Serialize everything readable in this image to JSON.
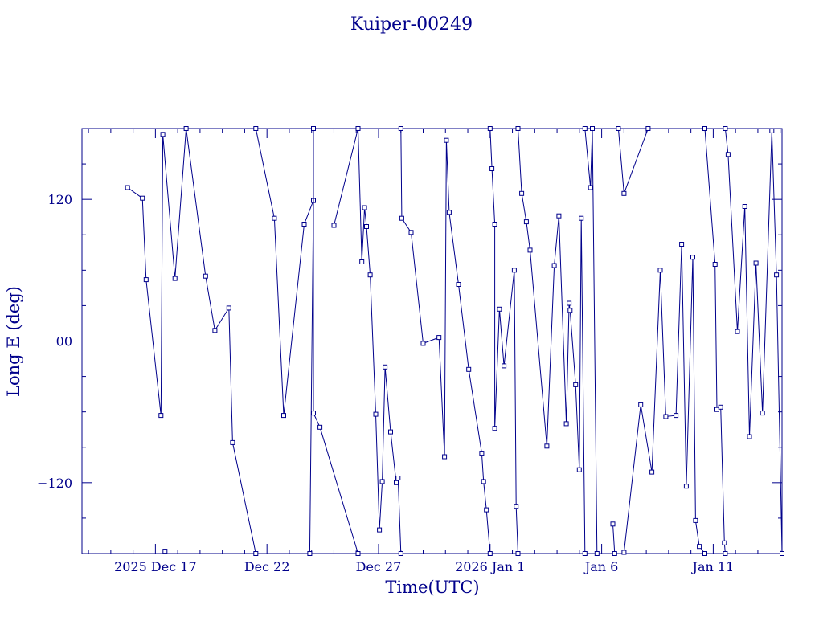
{
  "chart_data": {
    "type": "line",
    "title": "Kuiper-00249",
    "xlabel": "Time(UTC)",
    "ylabel": "Long E (deg)",
    "color": "#00008b",
    "background": "#ffffff",
    "grid": false,
    "legend": "none",
    "x_unit": "date",
    "x_range": [
      "2025-12-13T17:00",
      "2026-01-14T02:00"
    ],
    "y_range": [
      -180,
      180
    ],
    "x_tick_labels": [
      {
        "date": "2025-12-17",
        "label": "2025 Dec 17"
      },
      {
        "date": "2025-12-22",
        "label": "Dec 22"
      },
      {
        "date": "2025-12-27",
        "label": "Dec 27"
      },
      {
        "date": "2026-01-01",
        "label": "2026 Jan  1"
      },
      {
        "date": "2026-01-06",
        "label": "Jan  6"
      },
      {
        "date": "2026-01-11",
        "label": "Jan 11"
      }
    ],
    "y_tick_labels": [
      {
        "value": 120,
        "label": "120"
      },
      {
        "value": 0,
        "label": "00"
      },
      {
        "value": -120,
        "label": "−120"
      }
    ],
    "series": [
      {
        "points": [
          [
            "2025-12-17T10:17",
            -178
          ]
        ]
      },
      {
        "points": [
          [
            "2025-12-15T18:00",
            130
          ],
          [
            "2025-12-16T10:00",
            121
          ],
          [
            "2025-12-16T14:00",
            52
          ],
          [
            "2025-12-17T06:00",
            -63
          ],
          [
            "2025-12-17T08:00",
            175
          ],
          [
            "2025-12-17T21:00",
            53
          ],
          [
            "2025-12-18T09:00",
            180
          ],
          [
            "2025-12-19T06:00",
            55
          ],
          [
            "2025-12-19T16:00",
            9
          ],
          [
            "2025-12-20T07:00",
            28
          ],
          [
            "2025-12-20T11:00",
            -86
          ],
          [
            "2025-12-21T12:00",
            -180
          ]
        ]
      },
      {
        "points": [
          [
            "2025-12-21T12:00",
            180
          ],
          [
            "2025-12-22T08:00",
            104
          ],
          [
            "2025-12-22T18:00",
            -63
          ],
          [
            "2025-12-23T16:00",
            99
          ],
          [
            "2025-12-24T02:00",
            119
          ],
          [
            "2025-12-23T22:00",
            -180
          ]
        ]
      },
      {
        "points": [
          [
            "2025-12-24T02:00",
            180
          ],
          [
            "2025-12-24T02:00",
            -61
          ],
          [
            "2025-12-24T09:00",
            -73
          ],
          [
            "2025-12-26T02:00",
            -180
          ]
        ]
      },
      {
        "points": [
          [
            "2025-12-25T00:00",
            98
          ],
          [
            "2025-12-26T02:00",
            180
          ],
          [
            "2025-12-26T06:00",
            67
          ],
          [
            "2025-12-26T09:00",
            113
          ],
          [
            "2025-12-26T11:00",
            97
          ],
          [
            "2025-12-26T15:00",
            56
          ],
          [
            "2025-12-26T21:00",
            -62
          ],
          [
            "2025-12-27T01:00",
            -160
          ],
          [
            "2025-12-27T04:00",
            -119
          ],
          [
            "2025-12-27T07:00",
            -22
          ],
          [
            "2025-12-27T13:00",
            -77
          ],
          [
            "2025-12-27T19:00",
            -120
          ],
          [
            "2025-12-27T21:00",
            -116
          ],
          [
            "2025-12-28T00:00",
            -180
          ]
        ]
      },
      {
        "points": [
          [
            "2025-12-28T00:00",
            180
          ],
          [
            "2025-12-28T01:00",
            104
          ],
          [
            "2025-12-28T11:00",
            92
          ],
          [
            "2025-12-29T00:00",
            -2
          ],
          [
            "2025-12-29T17:00",
            3
          ],
          [
            "2025-12-29T23:00",
            -98
          ],
          [
            "2025-12-30T01:00",
            170
          ],
          [
            "2025-12-30T04:00",
            109
          ],
          [
            "2025-12-30T14:00",
            48
          ],
          [
            "2025-12-31T01:00",
            -24
          ],
          [
            "2025-12-31T15:00",
            -95
          ],
          [
            "2025-12-31T17:00",
            -119
          ],
          [
            "2025-12-31T20:00",
            -143
          ],
          [
            "2026-01-01T00:00",
            -180
          ]
        ]
      },
      {
        "points": [
          [
            "2026-01-01T00:00",
            180
          ],
          [
            "2026-01-01T02:00",
            146
          ],
          [
            "2026-01-01T05:00",
            99
          ],
          [
            "2026-01-01T05:00",
            -74
          ],
          [
            "2026-01-01T10:00",
            27
          ],
          [
            "2026-01-01T15:00",
            -21
          ],
          [
            "2026-01-02T02:00",
            60
          ],
          [
            "2026-01-02T04:00",
            -140
          ],
          [
            "2026-01-02T06:00",
            -180
          ]
        ]
      },
      {
        "points": [
          [
            "2026-01-02T06:00",
            180
          ],
          [
            "2026-01-02T10:00",
            125
          ],
          [
            "2026-01-02T15:00",
            101
          ],
          [
            "2026-01-02T19:00",
            77
          ],
          [
            "2026-01-03T13:00",
            -89
          ],
          [
            "2026-01-03T21:00",
            64
          ],
          [
            "2026-01-04T02:00",
            106
          ],
          [
            "2026-01-04T10:00",
            -70
          ],
          [
            "2026-01-04T13:00",
            32
          ],
          [
            "2026-01-04T14:00",
            26
          ],
          [
            "2026-01-04T20:00",
            -37
          ],
          [
            "2026-01-05T00:00",
            -109
          ],
          [
            "2026-01-05T02:00",
            104
          ],
          [
            "2026-01-05T06:00",
            -180
          ]
        ]
      },
      {
        "points": [
          [
            "2026-01-05T06:00",
            180
          ],
          [
            "2026-01-05T12:00",
            130
          ],
          [
            "2026-01-05T14:00",
            180
          ],
          [
            "2026-01-05T19:00",
            -180
          ]
        ]
      },
      {
        "points": [
          [
            "2026-01-06T12:00",
            -155
          ],
          [
            "2026-01-06T14:00",
            -180
          ]
        ]
      },
      {
        "points": [
          [
            "2026-01-06T18:00",
            180
          ],
          [
            "2026-01-07T00:00",
            125
          ],
          [
            "2026-01-08T02:00",
            180
          ]
        ]
      },
      {
        "points": [
          [
            "2026-01-07T00:00",
            -179
          ],
          [
            "2026-01-07T18:00",
            -54
          ],
          [
            "2026-01-08T06:00",
            -111
          ],
          [
            "2026-01-08T15:00",
            60
          ],
          [
            "2026-01-08T21:00",
            -64
          ],
          [
            "2026-01-09T08:00",
            -63
          ],
          [
            "2026-01-09T14:00",
            82
          ],
          [
            "2026-01-09T19:00",
            -123
          ],
          [
            "2026-01-10T02:00",
            71
          ],
          [
            "2026-01-10T05:00",
            -152
          ],
          [
            "2026-01-10T09:00",
            -174
          ],
          [
            "2026-01-10T15:00",
            -180
          ]
        ]
      },
      {
        "points": [
          [
            "2026-01-10T15:00",
            180
          ],
          [
            "2026-01-11T02:00",
            65
          ],
          [
            "2026-01-11T04:00",
            -58
          ],
          [
            "2026-01-11T08:00",
            -56
          ],
          [
            "2026-01-11T12:00",
            -171
          ],
          [
            "2026-01-11T13:00",
            -180
          ]
        ]
      },
      {
        "points": [
          [
            "2026-01-11T13:00",
            180
          ],
          [
            "2026-01-11T16:00",
            158
          ],
          [
            "2026-01-12T02:00",
            8
          ],
          [
            "2026-01-12T10:00",
            114
          ],
          [
            "2026-01-12T15:00",
            -81
          ],
          [
            "2026-01-12T22:00",
            66
          ],
          [
            "2026-01-13T05:00",
            -61
          ],
          [
            "2026-01-13T15:00",
            178
          ],
          [
            "2026-01-13T20:00",
            56
          ],
          [
            "2026-01-14T02:00",
            -180
          ]
        ]
      }
    ]
  }
}
